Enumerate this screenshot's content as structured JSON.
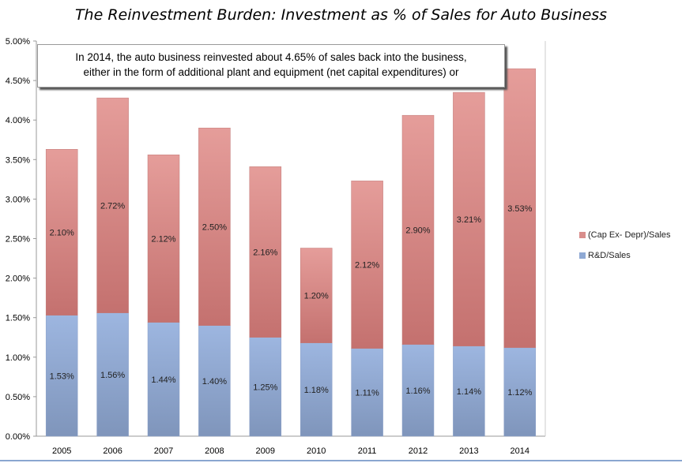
{
  "chart_data": {
    "type": "bar",
    "stacked": true,
    "title": "The Reinvestment Burden: Investment as % of Sales for Auto Business",
    "annotation": [
      "In 2014, the auto business reinvested about 4.65% of sales back into the business,",
      "either in the form of additional plant and equipment (net capital expenditures) or"
    ],
    "categories": [
      "2005",
      "2006",
      "2007",
      "2008",
      "2009",
      "2010",
      "2011",
      "2012",
      "2013",
      "2014"
    ],
    "series": [
      {
        "name": "R&D/Sales",
        "color": "#8fa9d4",
        "values": [
          1.53,
          1.56,
          1.44,
          1.4,
          1.25,
          1.18,
          1.11,
          1.16,
          1.14,
          1.12
        ],
        "labels": [
          "1.53%",
          "1.56%",
          "1.44%",
          "1.40%",
          "1.25%",
          "1.18%",
          "1.11%",
          "1.16%",
          "1.14%",
          "1.12%"
        ]
      },
      {
        "name": "(Cap Ex- Depr)/Sales",
        "color": "#d98e8c",
        "values": [
          2.1,
          2.72,
          2.12,
          2.5,
          2.16,
          1.2,
          2.12,
          2.9,
          3.21,
          3.53
        ],
        "labels": [
          "2.10%",
          "2.72%",
          "2.12%",
          "2.50%",
          "2.16%",
          "1.20%",
          "2.12%",
          "2.90%",
          "3.21%",
          "3.53%"
        ]
      }
    ],
    "ylim": [
      0,
      5
    ],
    "yticks": [
      "0.00%",
      "0.50%",
      "1.00%",
      "1.50%",
      "2.00%",
      "2.50%",
      "3.00%",
      "3.50%",
      "4.00%",
      "4.50%",
      "5.00%"
    ],
    "grid": false,
    "legend": "right"
  }
}
